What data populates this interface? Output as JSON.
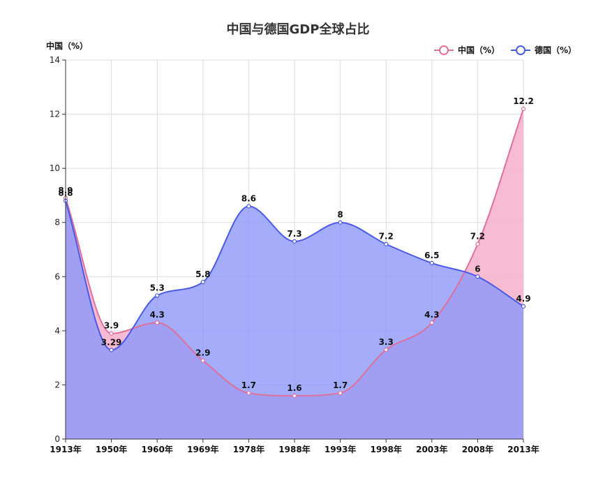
{
  "chart_data": {
    "type": "area",
    "title": "中国与德国GDP全球占比",
    "ylabel": "中国（%）",
    "xlabel": "",
    "categories": [
      "1913年",
      "1950年",
      "1960年",
      "1969年",
      "1978年",
      "1988年",
      "1993年",
      "1998年",
      "2003年",
      "2008年",
      "2013年"
    ],
    "ylim": [
      0,
      14
    ],
    "yticks": [
      0,
      2,
      4,
      6,
      8,
      10,
      12,
      14
    ],
    "grid": true,
    "legend_position": "top-right",
    "series": [
      {
        "name": "中国（%）",
        "color": "#e0709a",
        "fill": "#f5b3cc",
        "values": [
          8.9,
          3.9,
          4.3,
          2.9,
          1.7,
          1.6,
          1.7,
          3.3,
          4.3,
          7.2,
          12.2
        ],
        "labels": [
          "8.9",
          "3.9",
          "4.3",
          "2.9",
          "1.7",
          "1.6",
          "1.7",
          "3.3",
          "4.3",
          "7.2",
          "12.2"
        ]
      },
      {
        "name": "德国（%）",
        "color": "#4a5ae8",
        "fill": "#8c98fb",
        "values": [
          8.8,
          3.29,
          5.3,
          5.8,
          8.6,
          7.3,
          8,
          7.2,
          6.5,
          6,
          4.9
        ],
        "labels": [
          "8.8",
          "3.29",
          "5.3",
          "5.8",
          "8.6",
          "7.3",
          "8",
          "7.2",
          "6.5",
          "6",
          "4.9"
        ]
      }
    ]
  }
}
